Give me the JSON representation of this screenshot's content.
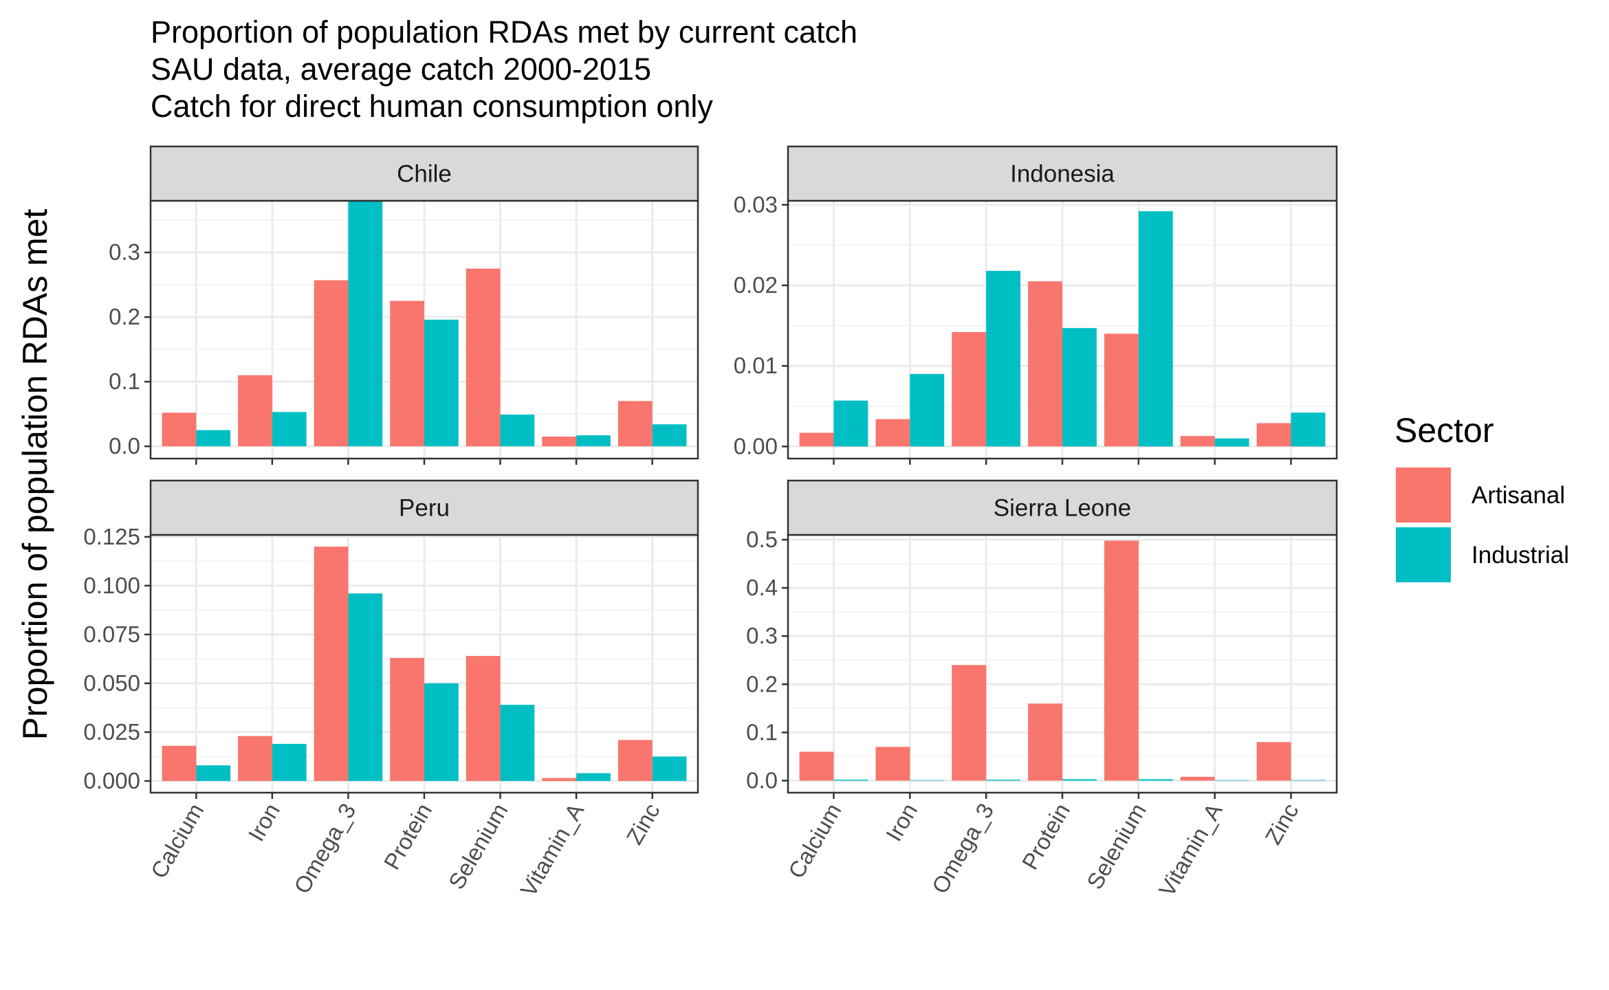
{
  "title_lines": [
    "Proportion of population RDAs met by current catch",
    "SAU data, average catch 2000-2015",
    "Catch for direct human consumption only"
  ],
  "chart_data": {
    "type": "bar",
    "layout": "facet-grid-2x2",
    "ylabel": "Proportion of population RDAs met",
    "xlabel": "",
    "categories": [
      "Calcium",
      "Iron",
      "Omega_3",
      "Protein",
      "Selenium",
      "Vitamin_A",
      "Zinc"
    ],
    "legend": {
      "title": "Sector",
      "placement": "right",
      "entries": [
        {
          "name": "Artisanal",
          "color": "#F8766D"
        },
        {
          "name": "Industrial",
          "color": "#00BFC4"
        }
      ]
    },
    "grid": true,
    "facets": [
      {
        "name": "Chile",
        "ylim": [
          -0.019,
          0.38
        ],
        "y_ticks": [
          0.0,
          0.1,
          0.2,
          0.3
        ],
        "y_tick_labels": [
          "0.0",
          "0.1",
          "0.2",
          "0.3"
        ],
        "series": [
          {
            "name": "Artisanal",
            "values": [
              0.052,
              0.11,
              0.257,
              0.225,
              0.275,
              0.015,
              0.07
            ]
          },
          {
            "name": "Industrial",
            "values": [
              0.025,
              0.053,
              0.381,
              0.196,
              0.049,
              0.017,
              0.034
            ]
          }
        ]
      },
      {
        "name": "Indonesia",
        "ylim": [
          -0.0015,
          0.0305
        ],
        "y_ticks": [
          0.0,
          0.01,
          0.02,
          0.03
        ],
        "y_tick_labels": [
          "0.00",
          "0.01",
          "0.02",
          "0.03"
        ],
        "series": [
          {
            "name": "Artisanal",
            "values": [
              0.0017,
              0.0034,
              0.0142,
              0.0205,
              0.014,
              0.0013,
              0.0029
            ]
          },
          {
            "name": "Industrial",
            "values": [
              0.0057,
              0.009,
              0.0218,
              0.0147,
              0.0292,
              0.001,
              0.0042
            ]
          }
        ]
      },
      {
        "name": "Peru",
        "ylim": [
          -0.006,
          0.126
        ],
        "y_ticks": [
          0.0,
          0.025,
          0.05,
          0.075,
          0.1,
          0.125
        ],
        "y_tick_labels": [
          "0.000",
          "0.025",
          "0.050",
          "0.075",
          "0.100",
          "0.125"
        ],
        "series": [
          {
            "name": "Artisanal",
            "values": [
              0.018,
              0.023,
              0.12,
              0.063,
              0.064,
              0.0015,
              0.021
            ]
          },
          {
            "name": "Industrial",
            "values": [
              0.008,
              0.019,
              0.096,
              0.05,
              0.039,
              0.004,
              0.0125
            ]
          }
        ]
      },
      {
        "name": "Sierra Leone",
        "ylim": [
          -0.025,
          0.51
        ],
        "y_ticks": [
          0.0,
          0.1,
          0.2,
          0.3,
          0.4,
          0.5
        ],
        "y_tick_labels": [
          "0.0",
          "0.1",
          "0.2",
          "0.3",
          "0.4",
          "0.5"
        ],
        "series": [
          {
            "name": "Artisanal",
            "values": [
              0.06,
              0.07,
              0.24,
              0.16,
              0.498,
              0.008,
              0.08
            ]
          },
          {
            "name": "Industrial",
            "values": [
              0.002,
              0.001,
              0.002,
              0.003,
              0.003,
              0.001,
              0.001
            ]
          }
        ]
      }
    ]
  }
}
